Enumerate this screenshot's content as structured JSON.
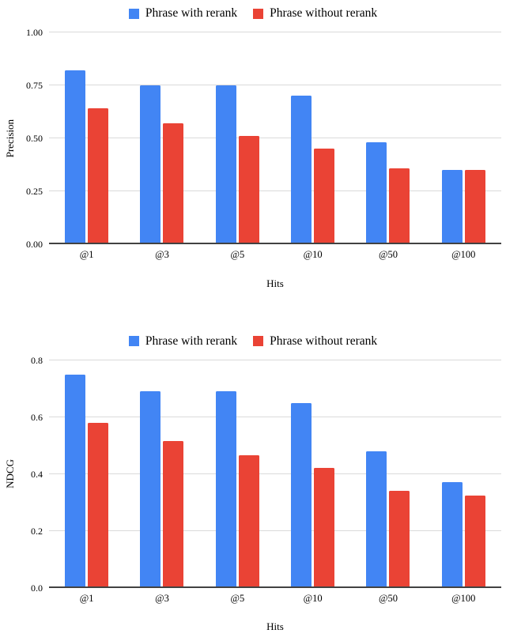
{
  "colors": {
    "series_with_rerank": "#4285f4",
    "series_without_rerank": "#ea4335",
    "gridline": "#dadada",
    "axis_baseline": "#424242",
    "text": "#000000"
  },
  "chart_data": [
    {
      "type": "bar",
      "title": "",
      "categories": [
        "@1",
        "@3",
        "@5",
        "@10",
        "@50",
        "@100"
      ],
      "series": [
        {
          "name": "Phrase with rerank",
          "color": "#4285f4",
          "values": [
            0.82,
            0.75,
            0.75,
            0.7,
            0.48,
            0.35
          ]
        },
        {
          "name": "Phrase without rerank",
          "color": "#ea4335",
          "values": [
            0.64,
            0.57,
            0.51,
            0.45,
            0.36,
            0.35
          ]
        }
      ],
      "xlabel": "Hits",
      "ylabel": "Precision",
      "ylim": [
        0,
        1.0
      ],
      "yticks": [
        0,
        0.25,
        0.5,
        0.75,
        1.0
      ],
      "ytick_labels": [
        "0.00",
        "0.25",
        "0.50",
        "0.75",
        "1.00"
      ],
      "legend_position": "top",
      "grid": true
    },
    {
      "type": "bar",
      "title": "",
      "categories": [
        "@1",
        "@3",
        "@5",
        "@10",
        "@50",
        "@100"
      ],
      "series": [
        {
          "name": "Phrase with rerank",
          "color": "#4285f4",
          "values": [
            0.75,
            0.69,
            0.69,
            0.65,
            0.48,
            0.37
          ]
        },
        {
          "name": "Phrase without rerank",
          "color": "#ea4335",
          "values": [
            0.58,
            0.515,
            0.465,
            0.42,
            0.34,
            0.325
          ]
        }
      ],
      "xlabel": "Hits",
      "ylabel": "NDCG",
      "ylim": [
        0,
        0.8
      ],
      "yticks": [
        0,
        0.2,
        0.4,
        0.6,
        0.8
      ],
      "ytick_labels": [
        "0.0",
        "0.2",
        "0.4",
        "0.6",
        "0.8"
      ],
      "legend_position": "top",
      "grid": true
    }
  ]
}
